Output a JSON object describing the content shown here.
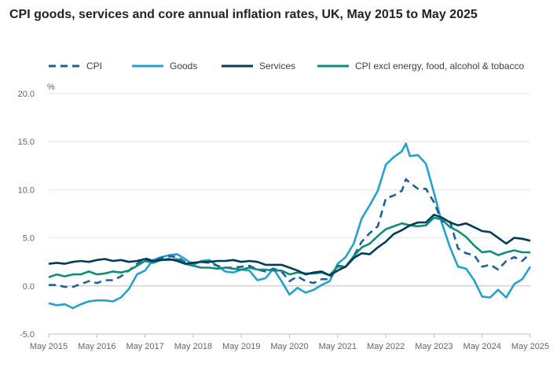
{
  "chart_data": {
    "type": "line",
    "title": "CPI goods, services and core annual inflation rates, UK, May 2015 to May 2025",
    "ylabel": "%",
    "ylim": [
      -5,
      20
    ],
    "yticks": [
      "20.0",
      "15.0",
      "10.0",
      "5.0",
      "0.0",
      "-5.0"
    ],
    "ytick_values": [
      20,
      15,
      10,
      5,
      0,
      -5
    ],
    "xticks": [
      "May 2015",
      "May 2016",
      "May 2017",
      "May 2018",
      "May 2019",
      "May 2020",
      "May 2021",
      "May 2022",
      "May 2023",
      "May 2024",
      "May 2025"
    ],
    "xtick_values": [
      2015.333,
      2016.333,
      2017.333,
      2018.333,
      2019.333,
      2020.333,
      2021.333,
      2022.333,
      2023.333,
      2024.333,
      2025.333
    ],
    "xlim": [
      2015.333,
      2025.333
    ],
    "legend_position": "top",
    "series": [
      {
        "name": "CPI",
        "color": "#206095",
        "dash": true,
        "points": [
          [
            2015.333,
            0.1
          ],
          [
            2015.5,
            0.1
          ],
          [
            2015.667,
            -0.1
          ],
          [
            2015.833,
            -0.1
          ],
          [
            2016.0,
            0.2
          ],
          [
            2016.167,
            0.5
          ],
          [
            2016.333,
            0.3
          ],
          [
            2016.5,
            0.6
          ],
          [
            2016.667,
            0.6
          ],
          [
            2016.833,
            1.0
          ],
          [
            2017.0,
            1.6
          ],
          [
            2017.167,
            2.3
          ],
          [
            2017.333,
            2.9
          ],
          [
            2017.5,
            2.6
          ],
          [
            2017.667,
            2.9
          ],
          [
            2017.833,
            3.1
          ],
          [
            2018.0,
            3.0
          ],
          [
            2018.167,
            2.5
          ],
          [
            2018.333,
            2.4
          ],
          [
            2018.5,
            2.5
          ],
          [
            2018.667,
            2.4
          ],
          [
            2018.833,
            2.1
          ],
          [
            2019.0,
            1.9
          ],
          [
            2019.167,
            1.9
          ],
          [
            2019.333,
            2.0
          ],
          [
            2019.5,
            2.1
          ],
          [
            2019.667,
            1.7
          ],
          [
            2019.833,
            1.5
          ],
          [
            2020.0,
            1.8
          ],
          [
            2020.167,
            1.5
          ],
          [
            2020.333,
            0.5
          ],
          [
            2020.5,
            1.0
          ],
          [
            2020.667,
            0.5
          ],
          [
            2020.833,
            0.3
          ],
          [
            2021.0,
            0.7
          ],
          [
            2021.167,
            0.7
          ],
          [
            2021.333,
            2.1
          ],
          [
            2021.5,
            2.0
          ],
          [
            2021.667,
            3.1
          ],
          [
            2021.833,
            4.6
          ],
          [
            2022.0,
            5.5
          ],
          [
            2022.167,
            6.2
          ],
          [
            2022.333,
            9.1
          ],
          [
            2022.5,
            9.4
          ],
          [
            2022.667,
            9.9
          ],
          [
            2022.75,
            11.1
          ],
          [
            2022.833,
            10.7
          ],
          [
            2023.0,
            10.1
          ],
          [
            2023.167,
            10.1
          ],
          [
            2023.333,
            8.7
          ],
          [
            2023.5,
            6.7
          ],
          [
            2023.667,
            6.7
          ],
          [
            2023.833,
            3.9
          ],
          [
            2024.0,
            3.4
          ],
          [
            2024.167,
            3.2
          ],
          [
            2024.333,
            2.0
          ],
          [
            2024.5,
            2.2
          ],
          [
            2024.667,
            1.7
          ],
          [
            2024.833,
            2.6
          ],
          [
            2025.0,
            3.0
          ],
          [
            2025.167,
            2.6
          ],
          [
            2025.333,
            3.4
          ]
        ]
      },
      {
        "name": "Goods",
        "color": "#27a0cc",
        "dash": false,
        "points": [
          [
            2015.333,
            -1.8
          ],
          [
            2015.5,
            -2.0
          ],
          [
            2015.667,
            -1.9
          ],
          [
            2015.833,
            -2.3
          ],
          [
            2016.0,
            -1.9
          ],
          [
            2016.167,
            -1.6
          ],
          [
            2016.333,
            -1.5
          ],
          [
            2016.5,
            -1.5
          ],
          [
            2016.667,
            -1.6
          ],
          [
            2016.833,
            -1.2
          ],
          [
            2017.0,
            -0.3
          ],
          [
            2017.167,
            1.2
          ],
          [
            2017.333,
            1.6
          ],
          [
            2017.5,
            2.7
          ],
          [
            2017.667,
            3.0
          ],
          [
            2017.833,
            3.2
          ],
          [
            2018.0,
            3.3
          ],
          [
            2018.167,
            2.8
          ],
          [
            2018.333,
            2.2
          ],
          [
            2018.5,
            2.6
          ],
          [
            2018.667,
            2.7
          ],
          [
            2018.833,
            2.1
          ],
          [
            2019.0,
            1.5
          ],
          [
            2019.167,
            1.4
          ],
          [
            2019.333,
            1.7
          ],
          [
            2019.5,
            1.6
          ],
          [
            2019.667,
            0.6
          ],
          [
            2019.833,
            0.8
          ],
          [
            2020.0,
            1.8
          ],
          [
            2020.167,
            0.5
          ],
          [
            2020.333,
            -0.9
          ],
          [
            2020.5,
            -0.2
          ],
          [
            2020.667,
            -0.7
          ],
          [
            2020.833,
            -0.4
          ],
          [
            2021.0,
            0.1
          ],
          [
            2021.167,
            0.5
          ],
          [
            2021.333,
            2.3
          ],
          [
            2021.5,
            3.0
          ],
          [
            2021.667,
            4.4
          ],
          [
            2021.833,
            7.0
          ],
          [
            2022.0,
            8.4
          ],
          [
            2022.167,
            9.9
          ],
          [
            2022.333,
            12.6
          ],
          [
            2022.5,
            13.4
          ],
          [
            2022.667,
            14.0
          ],
          [
            2022.75,
            14.8
          ],
          [
            2022.833,
            13.5
          ],
          [
            2023.0,
            13.6
          ],
          [
            2023.167,
            12.7
          ],
          [
            2023.333,
            9.7
          ],
          [
            2023.5,
            6.5
          ],
          [
            2023.667,
            4.0
          ],
          [
            2023.833,
            2.0
          ],
          [
            2024.0,
            1.8
          ],
          [
            2024.167,
            0.6
          ],
          [
            2024.333,
            -1.1
          ],
          [
            2024.5,
            -1.2
          ],
          [
            2024.667,
            -0.4
          ],
          [
            2024.833,
            -1.2
          ],
          [
            2025.0,
            0.2
          ],
          [
            2025.167,
            0.7
          ],
          [
            2025.333,
            2.0
          ]
        ]
      },
      {
        "name": "Services",
        "color": "#003c57",
        "dash": false,
        "points": [
          [
            2015.333,
            2.3
          ],
          [
            2015.5,
            2.4
          ],
          [
            2015.667,
            2.3
          ],
          [
            2015.833,
            2.5
          ],
          [
            2016.0,
            2.6
          ],
          [
            2016.167,
            2.5
          ],
          [
            2016.333,
            2.7
          ],
          [
            2016.5,
            2.8
          ],
          [
            2016.667,
            2.6
          ],
          [
            2016.833,
            2.7
          ],
          [
            2017.0,
            2.5
          ],
          [
            2017.167,
            2.6
          ],
          [
            2017.333,
            2.8
          ],
          [
            2017.5,
            2.6
          ],
          [
            2017.667,
            2.7
          ],
          [
            2017.833,
            2.8
          ],
          [
            2018.0,
            2.6
          ],
          [
            2018.167,
            2.3
          ],
          [
            2018.333,
            2.4
          ],
          [
            2018.5,
            2.5
          ],
          [
            2018.667,
            2.5
          ],
          [
            2018.833,
            2.6
          ],
          [
            2019.0,
            2.6
          ],
          [
            2019.167,
            2.7
          ],
          [
            2019.333,
            2.5
          ],
          [
            2019.5,
            2.6
          ],
          [
            2019.667,
            2.5
          ],
          [
            2019.833,
            2.2
          ],
          [
            2020.0,
            2.2
          ],
          [
            2020.167,
            2.2
          ],
          [
            2020.333,
            1.9
          ],
          [
            2020.5,
            1.6
          ],
          [
            2020.667,
            1.2
          ],
          [
            2020.833,
            1.4
          ],
          [
            2021.0,
            1.5
          ],
          [
            2021.167,
            1.1
          ],
          [
            2021.333,
            1.6
          ],
          [
            2021.5,
            2.0
          ],
          [
            2021.667,
            2.9
          ],
          [
            2021.833,
            3.4
          ],
          [
            2022.0,
            3.3
          ],
          [
            2022.167,
            4.0
          ],
          [
            2022.333,
            4.6
          ],
          [
            2022.5,
            5.4
          ],
          [
            2022.667,
            5.8
          ],
          [
            2022.833,
            6.3
          ],
          [
            2023.0,
            6.6
          ],
          [
            2023.167,
            6.6
          ],
          [
            2023.333,
            7.4
          ],
          [
            2023.5,
            7.1
          ],
          [
            2023.667,
            6.6
          ],
          [
            2023.833,
            6.3
          ],
          [
            2024.0,
            6.5
          ],
          [
            2024.167,
            6.1
          ],
          [
            2024.333,
            5.7
          ],
          [
            2024.5,
            5.6
          ],
          [
            2024.667,
            5.0
          ],
          [
            2024.833,
            4.4
          ],
          [
            2025.0,
            5.0
          ],
          [
            2025.167,
            4.9
          ],
          [
            2025.333,
            4.7
          ]
        ]
      },
      {
        "name": "CPI excl energy, food, alcohol & tobacco",
        "color": "#118c7b",
        "dash": false,
        "points": [
          [
            2015.333,
            0.9
          ],
          [
            2015.5,
            1.2
          ],
          [
            2015.667,
            1.0
          ],
          [
            2015.833,
            1.2
          ],
          [
            2016.0,
            1.2
          ],
          [
            2016.167,
            1.5
          ],
          [
            2016.333,
            1.2
          ],
          [
            2016.5,
            1.3
          ],
          [
            2016.667,
            1.5
          ],
          [
            2016.833,
            1.4
          ],
          [
            2017.0,
            1.6
          ],
          [
            2017.167,
            2.1
          ],
          [
            2017.333,
            2.6
          ],
          [
            2017.5,
            2.4
          ],
          [
            2017.667,
            2.7
          ],
          [
            2017.833,
            2.7
          ],
          [
            2018.0,
            2.8
          ],
          [
            2018.167,
            2.3
          ],
          [
            2018.333,
            2.1
          ],
          [
            2018.5,
            1.9
          ],
          [
            2018.667,
            1.9
          ],
          [
            2018.833,
            1.8
          ],
          [
            2019.0,
            1.9
          ],
          [
            2019.167,
            1.8
          ],
          [
            2019.333,
            1.7
          ],
          [
            2019.5,
            1.9
          ],
          [
            2019.667,
            1.7
          ],
          [
            2019.833,
            1.7
          ],
          [
            2020.0,
            1.6
          ],
          [
            2020.167,
            1.6
          ],
          [
            2020.333,
            1.2
          ],
          [
            2020.5,
            1.4
          ],
          [
            2020.667,
            1.3
          ],
          [
            2020.833,
            1.3
          ],
          [
            2021.0,
            1.4
          ],
          [
            2021.167,
            1.1
          ],
          [
            2021.333,
            2.0
          ],
          [
            2021.5,
            2.0
          ],
          [
            2021.667,
            3.1
          ],
          [
            2021.833,
            4.0
          ],
          [
            2022.0,
            4.4
          ],
          [
            2022.167,
            5.2
          ],
          [
            2022.333,
            5.9
          ],
          [
            2022.5,
            6.2
          ],
          [
            2022.667,
            6.5
          ],
          [
            2022.833,
            6.3
          ],
          [
            2023.0,
            6.2
          ],
          [
            2023.167,
            6.3
          ],
          [
            2023.333,
            7.1
          ],
          [
            2023.5,
            6.9
          ],
          [
            2023.667,
            6.1
          ],
          [
            2023.833,
            5.7
          ],
          [
            2024.0,
            5.1
          ],
          [
            2024.167,
            4.2
          ],
          [
            2024.333,
            3.5
          ],
          [
            2024.5,
            3.6
          ],
          [
            2024.667,
            3.2
          ],
          [
            2024.833,
            3.5
          ],
          [
            2025.0,
            3.7
          ],
          [
            2025.167,
            3.5
          ],
          [
            2025.333,
            3.5
          ]
        ]
      }
    ]
  }
}
